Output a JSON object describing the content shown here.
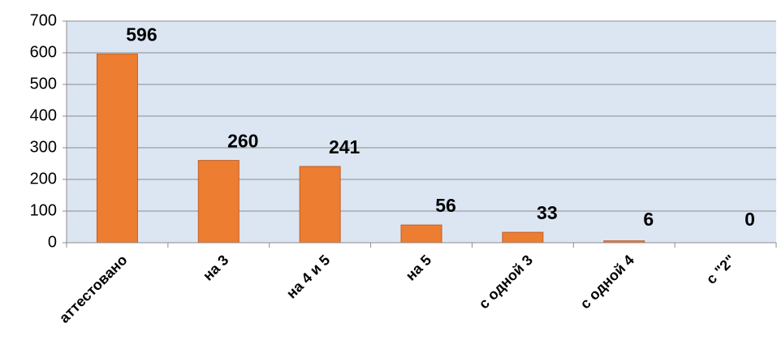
{
  "chart_data": {
    "type": "bar",
    "categories": [
      "аттестовано",
      "на 3",
      "на 4 и 5",
      "на 5",
      "с одной 3",
      "с одной 4",
      "с \"2\""
    ],
    "values": [
      596,
      260,
      241,
      56,
      33,
      6,
      0
    ],
    "color": "#ed7d31",
    "ylim": [
      0,
      700
    ],
    "yticks": [
      0,
      100,
      200,
      300,
      400,
      500,
      600,
      700
    ],
    "grid": true
  }
}
